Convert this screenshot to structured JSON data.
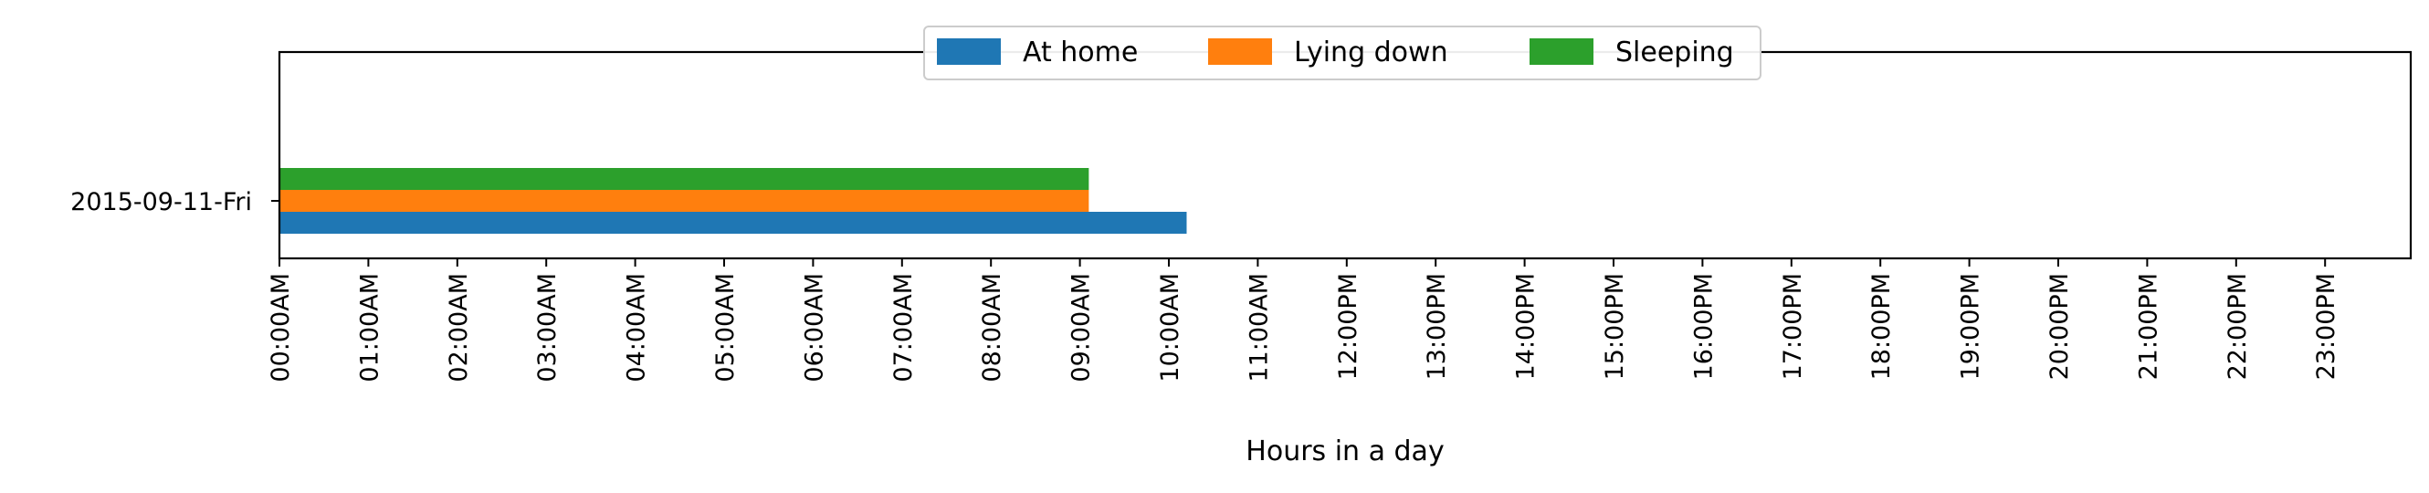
{
  "chart_data": {
    "type": "bar",
    "orientation": "horizontal",
    "categories": [
      "2015-09-11-Fri"
    ],
    "series": [
      {
        "name": "At home",
        "color": "#1f77b4",
        "values": [
          10.2
        ]
      },
      {
        "name": "Lying down",
        "color": "#ff7f0e",
        "values": [
          9.1
        ]
      },
      {
        "name": "Sleeping",
        "color": "#2ca02c",
        "values": [
          9.1
        ]
      }
    ],
    "xlim": [
      0,
      24
    ],
    "xticks": [
      {
        "value": 0,
        "label": "00:00AM"
      },
      {
        "value": 1,
        "label": "01:00AM"
      },
      {
        "value": 2,
        "label": "02:00AM"
      },
      {
        "value": 3,
        "label": "03:00AM"
      },
      {
        "value": 4,
        "label": "04:00AM"
      },
      {
        "value": 5,
        "label": "05:00AM"
      },
      {
        "value": 6,
        "label": "06:00AM"
      },
      {
        "value": 7,
        "label": "07:00AM"
      },
      {
        "value": 8,
        "label": "08:00AM"
      },
      {
        "value": 9,
        "label": "09:00AM"
      },
      {
        "value": 10,
        "label": "10:00AM"
      },
      {
        "value": 11,
        "label": "11:00AM"
      },
      {
        "value": 12,
        "label": "12:00PM"
      },
      {
        "value": 13,
        "label": "13:00PM"
      },
      {
        "value": 14,
        "label": "14:00PM"
      },
      {
        "value": 15,
        "label": "15:00PM"
      },
      {
        "value": 16,
        "label": "16:00PM"
      },
      {
        "value": 17,
        "label": "17:00PM"
      },
      {
        "value": 18,
        "label": "18:00PM"
      },
      {
        "value": 19,
        "label": "19:00PM"
      },
      {
        "value": 20,
        "label": "20:00PM"
      },
      {
        "value": 21,
        "label": "21:00PM"
      },
      {
        "value": 22,
        "label": "22:00PM"
      },
      {
        "value": 23,
        "label": "23:00PM"
      }
    ],
    "xlabel": "Hours in a day",
    "ylabel": "",
    "title": "",
    "grid": false,
    "legend_placement": "top-center"
  }
}
